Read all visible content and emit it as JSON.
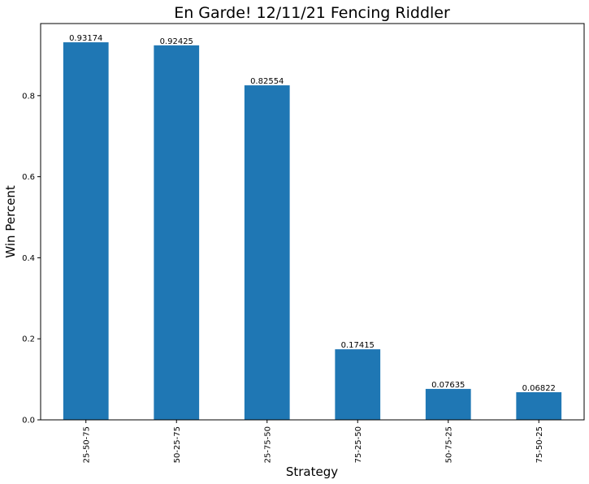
{
  "chart_data": {
    "type": "bar",
    "title": "En Garde! 12/11/21 Fencing Riddler",
    "xlabel": "Strategy",
    "ylabel": "Win Percent",
    "categories": [
      "25-50-75",
      "50-25-75",
      "25-75-50",
      "75-25-50",
      "50-75-25",
      "75-50-25"
    ],
    "values": [
      0.93174,
      0.92425,
      0.82554,
      0.17415,
      0.07635,
      0.06822
    ],
    "value_labels": [
      "0.93174",
      "0.92425",
      "0.82554",
      "0.17415",
      "0.07635",
      "0.06822"
    ],
    "ylim": [
      0,
      0.978
    ],
    "yticks": [
      0.0,
      0.2,
      0.4,
      0.6,
      0.8
    ],
    "ytick_labels": [
      "0.0",
      "0.2",
      "0.4",
      "0.6",
      "0.8"
    ],
    "bar_color": "#1f77b4",
    "grid": false,
    "legend": "none"
  }
}
